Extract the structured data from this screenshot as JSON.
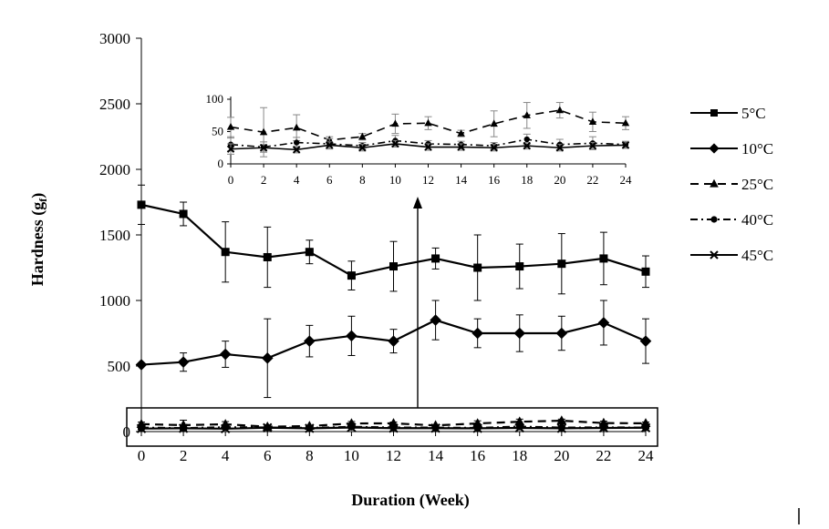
{
  "chart_data": {
    "type": "line",
    "title": "",
    "xlabel": "Duration (Week)",
    "ylabel": "Hardness (g",
    "ylabel_subscript": "f",
    "ylabel_close": ")",
    "x": [
      0,
      2,
      4,
      6,
      8,
      10,
      12,
      14,
      16,
      18,
      20,
      22,
      24
    ],
    "xlim": [
      0,
      24
    ],
    "ylim": [
      0,
      3000
    ],
    "yticks": [
      0,
      500,
      1000,
      1500,
      2000,
      2500,
      3000
    ],
    "grid": false,
    "legend_position": "right",
    "series": [
      {
        "name": "5°C",
        "marker": "square",
        "dash": "solid",
        "values": [
          1730,
          1660,
          1370,
          1330,
          1370,
          1190,
          1260,
          1320,
          1250,
          1260,
          1280,
          1320,
          1220
        ],
        "errors": [
          150,
          90,
          230,
          230,
          90,
          110,
          190,
          80,
          250,
          170,
          230,
          200,
          120
        ]
      },
      {
        "name": "10°C",
        "marker": "diamond",
        "dash": "solid",
        "values": [
          510,
          530,
          590,
          560,
          690,
          730,
          690,
          850,
          750,
          750,
          750,
          830,
          690
        ],
        "errors": [
          0,
          70,
          100,
          300,
          120,
          150,
          90,
          150,
          110,
          140,
          130,
          170,
          170
        ]
      },
      {
        "name": "25°C",
        "marker": "triangle",
        "dash": "dash",
        "values": [
          57,
          49,
          56,
          37,
          42,
          62,
          63,
          47,
          62,
          75,
          83,
          65,
          63
        ],
        "errors": [
          15,
          38,
          20,
          5,
          5,
          15,
          10,
          5,
          20,
          20,
          12,
          15,
          10
        ]
      },
      {
        "name": "40°C",
        "marker": "circle",
        "dash": "dashdot",
        "values": [
          30,
          26,
          33,
          31,
          28,
          36,
          31,
          30,
          28,
          38,
          30,
          32,
          30
        ],
        "errors": [
          10,
          8,
          8,
          8,
          5,
          8,
          5,
          5,
          5,
          8,
          8,
          10,
          5
        ]
      },
      {
        "name": "45°C",
        "marker": "x",
        "dash": "solid",
        "values": [
          23,
          25,
          22,
          29,
          25,
          31,
          26,
          26,
          25,
          28,
          25,
          28,
          29
        ],
        "errors": [
          8,
          5,
          5,
          5,
          5,
          5,
          5,
          5,
          5,
          5,
          5,
          5,
          5
        ]
      }
    ],
    "inset": {
      "ylim": [
        0,
        100
      ],
      "yticks": [
        0,
        50,
        100
      ],
      "xticks": [
        0,
        2,
        4,
        6,
        8,
        10,
        12,
        14,
        16,
        18,
        20,
        22,
        24
      ],
      "series": [
        "25°C",
        "40°C",
        "45°C"
      ]
    },
    "annotation": "arrow from zoom box to inset"
  }
}
